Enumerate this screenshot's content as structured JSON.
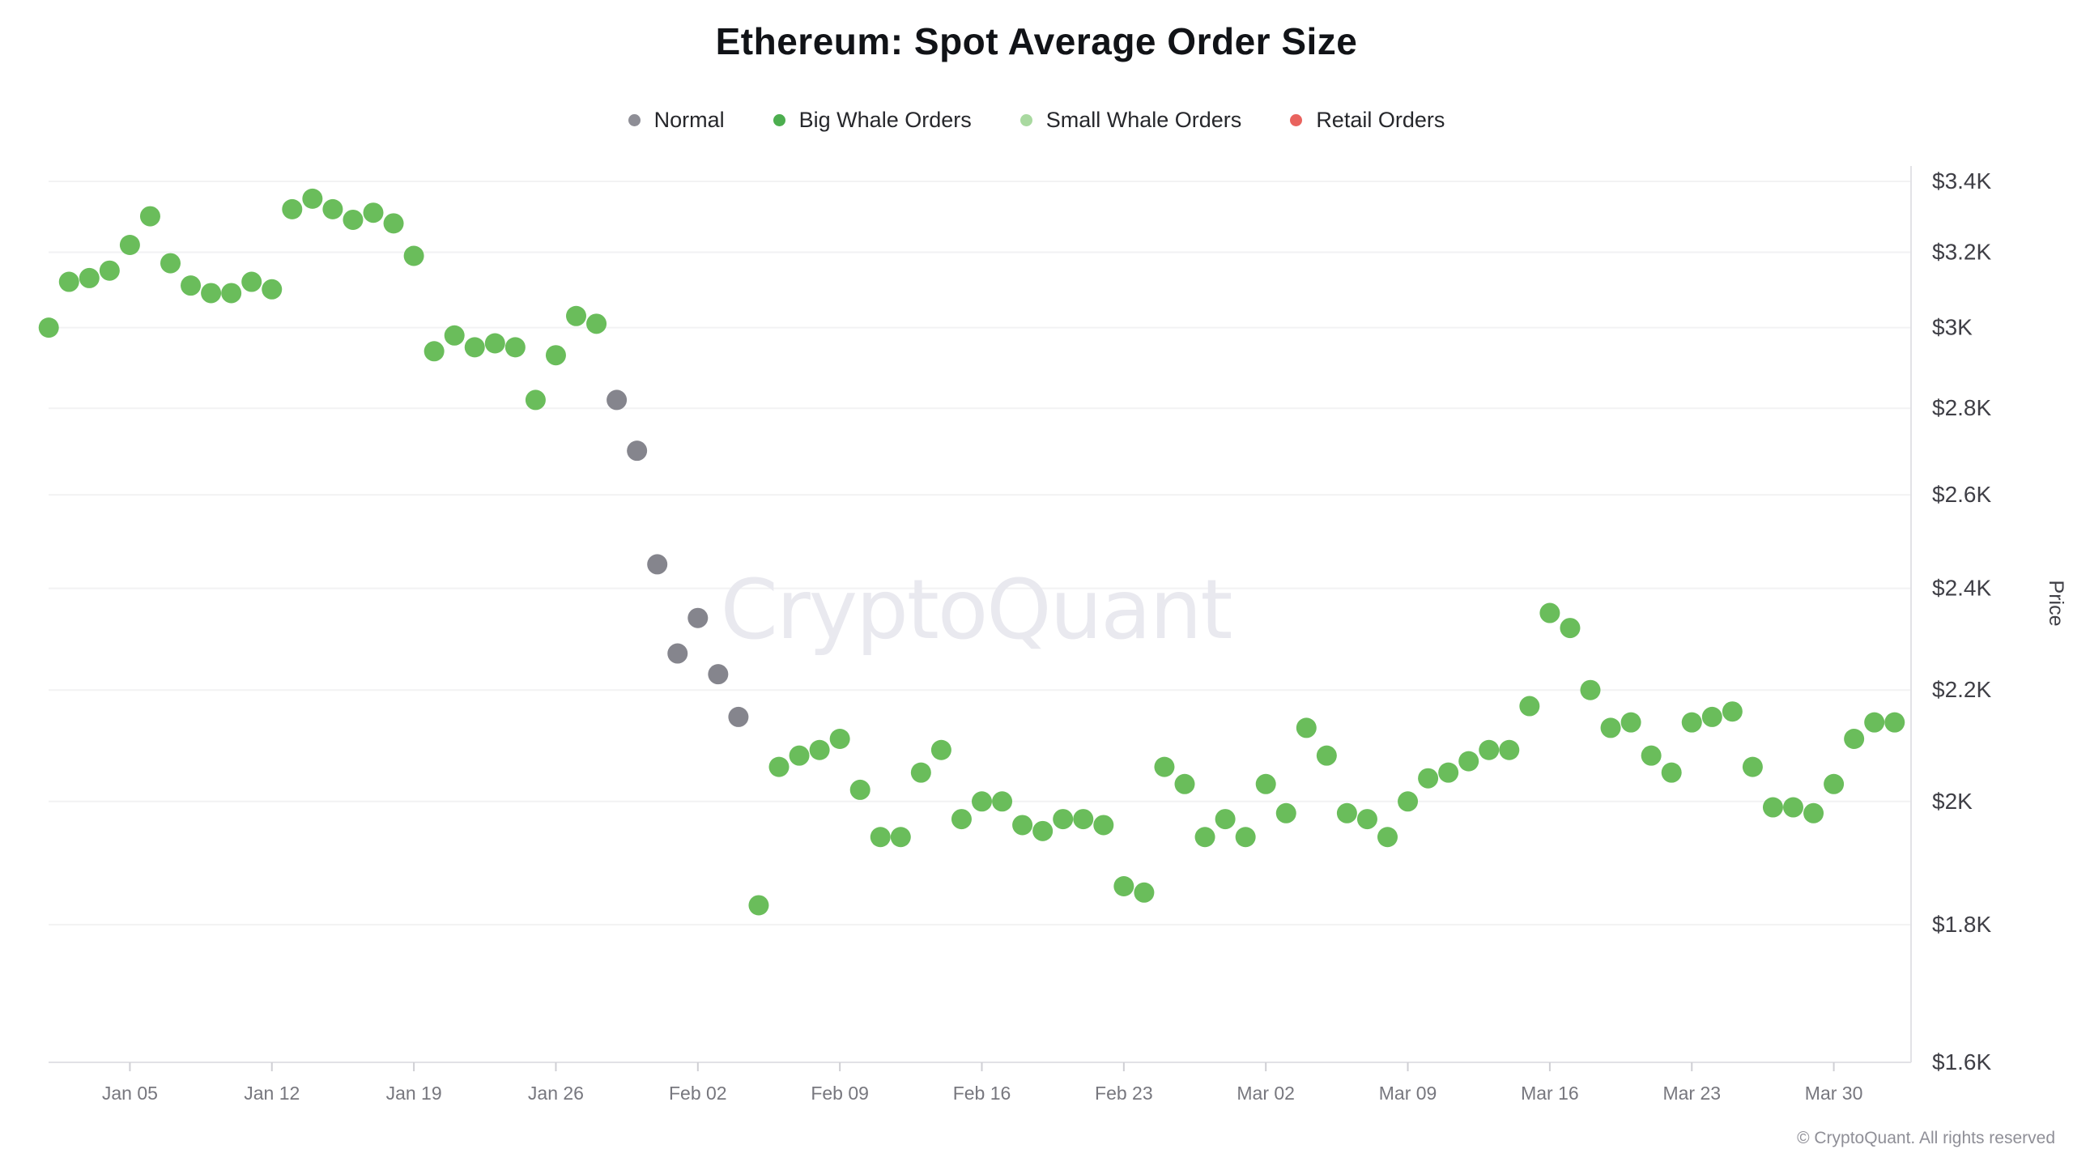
{
  "header": {
    "title": "Ethereum: Spot Average Order Size"
  },
  "legend": [
    {
      "key": "normal",
      "label": "Normal",
      "color": "#8e8e96"
    },
    {
      "key": "big_whale",
      "label": "Big Whale Orders",
      "color": "#4cae4f"
    },
    {
      "key": "small_whale",
      "label": "Small Whale Orders",
      "color": "#a9d9a0"
    },
    {
      "key": "retail",
      "label": "Retail Orders",
      "color": "#e9635e"
    }
  ],
  "watermark": "CryptoQuant",
  "footer": {
    "copyright": "© CryptoQuant. All rights reserved"
  },
  "chart_data": {
    "type": "scatter",
    "title": "Ethereum: Spot Average Order Size",
    "xlabel": "",
    "ylabel": "Price",
    "grid": "horizontal",
    "point_radius": 12.5,
    "y_axis": {
      "scale": "log",
      "unit": "USD",
      "ticks": [
        {
          "label": "$3.4K",
          "value": 3.4
        },
        {
          "label": "$3.2K",
          "value": 3.2
        },
        {
          "label": "$3K",
          "value": 3.0
        },
        {
          "label": "$2.8K",
          "value": 2.8
        },
        {
          "label": "$2.6K",
          "value": 2.6
        },
        {
          "label": "$2.4K",
          "value": 2.4
        },
        {
          "label": "$2.2K",
          "value": 2.2
        },
        {
          "label": "$2K",
          "value": 2.0
        },
        {
          "label": "$1.8K",
          "value": 1.8
        },
        {
          "label": "$1.6K",
          "value": 1.6
        }
      ]
    },
    "x_axis": {
      "range": [
        "Jan 01",
        "Apr 02"
      ],
      "ticks": [
        {
          "label": "Jan 05",
          "day": 4
        },
        {
          "label": "Jan 12",
          "day": 11
        },
        {
          "label": "Jan 19",
          "day": 18
        },
        {
          "label": "Jan 26",
          "day": 25
        },
        {
          "label": "Feb 02",
          "day": 32
        },
        {
          "label": "Feb 09",
          "day": 39
        },
        {
          "label": "Feb 16",
          "day": 46
        },
        {
          "label": "Feb 23",
          "day": 53
        },
        {
          "label": "Mar 02",
          "day": 60
        },
        {
          "label": "Mar 09",
          "day": 67
        },
        {
          "label": "Mar 16",
          "day": 74
        },
        {
          "label": "Mar 23",
          "day": 81
        },
        {
          "label": "Mar 30",
          "day": 88
        }
      ]
    },
    "series_colors": {
      "normal": "#85858d",
      "big_whale": "#6abd5b",
      "small_whale": "#a9d9a0",
      "retail": "#e9635e"
    },
    "points": [
      {
        "date": "Jan 01",
        "day": 0,
        "price_k": 3.0,
        "series": "big_whale"
      },
      {
        "date": "Jan 02",
        "day": 1,
        "price_k": 3.12,
        "series": "big_whale"
      },
      {
        "date": "Jan 03",
        "day": 2,
        "price_k": 3.13,
        "series": "big_whale"
      },
      {
        "date": "Jan 04",
        "day": 3,
        "price_k": 3.15,
        "series": "big_whale"
      },
      {
        "date": "Jan 05",
        "day": 4,
        "price_k": 3.22,
        "series": "big_whale"
      },
      {
        "date": "Jan 06",
        "day": 5,
        "price_k": 3.3,
        "series": "big_whale"
      },
      {
        "date": "Jan 07",
        "day": 6,
        "price_k": 3.17,
        "series": "big_whale"
      },
      {
        "date": "Jan 08",
        "day": 7,
        "price_k": 3.11,
        "series": "big_whale"
      },
      {
        "date": "Jan 09",
        "day": 8,
        "price_k": 3.09,
        "series": "big_whale"
      },
      {
        "date": "Jan 10",
        "day": 9,
        "price_k": 3.09,
        "series": "big_whale"
      },
      {
        "date": "Jan 11",
        "day": 10,
        "price_k": 3.12,
        "series": "big_whale"
      },
      {
        "date": "Jan 12",
        "day": 11,
        "price_k": 3.1,
        "series": "big_whale"
      },
      {
        "date": "Jan 13",
        "day": 12,
        "price_k": 3.32,
        "series": "big_whale"
      },
      {
        "date": "Jan 14",
        "day": 13,
        "price_k": 3.35,
        "series": "big_whale"
      },
      {
        "date": "Jan 15",
        "day": 14,
        "price_k": 3.32,
        "series": "big_whale"
      },
      {
        "date": "Jan 16",
        "day": 15,
        "price_k": 3.29,
        "series": "big_whale"
      },
      {
        "date": "Jan 17",
        "day": 16,
        "price_k": 3.31,
        "series": "big_whale"
      },
      {
        "date": "Jan 18",
        "day": 17,
        "price_k": 3.28,
        "series": "big_whale"
      },
      {
        "date": "Jan 19",
        "day": 18,
        "price_k": 3.19,
        "series": "big_whale"
      },
      {
        "date": "Jan 20",
        "day": 19,
        "price_k": 2.94,
        "series": "big_whale"
      },
      {
        "date": "Jan 21",
        "day": 20,
        "price_k": 2.98,
        "series": "big_whale"
      },
      {
        "date": "Jan 22",
        "day": 21,
        "price_k": 2.95,
        "series": "big_whale"
      },
      {
        "date": "Jan 23",
        "day": 22,
        "price_k": 2.96,
        "series": "big_whale"
      },
      {
        "date": "Jan 24",
        "day": 23,
        "price_k": 2.95,
        "series": "big_whale"
      },
      {
        "date": "Jan 25",
        "day": 24,
        "price_k": 2.82,
        "series": "big_whale"
      },
      {
        "date": "Jan 26",
        "day": 25,
        "price_k": 2.93,
        "series": "big_whale"
      },
      {
        "date": "Jan 27",
        "day": 26,
        "price_k": 3.03,
        "series": "big_whale"
      },
      {
        "date": "Jan 28",
        "day": 27,
        "price_k": 3.01,
        "series": "big_whale"
      },
      {
        "date": "Jan 29",
        "day": 28,
        "price_k": 2.82,
        "series": "normal"
      },
      {
        "date": "Jan 30",
        "day": 29,
        "price_k": 2.7,
        "series": "normal"
      },
      {
        "date": "Jan 31",
        "day": 30,
        "price_k": 2.45,
        "series": "normal"
      },
      {
        "date": "Feb 01",
        "day": 31,
        "price_k": 2.27,
        "series": "normal"
      },
      {
        "date": "Feb 02",
        "day": 32,
        "price_k": 2.34,
        "series": "normal"
      },
      {
        "date": "Feb 03",
        "day": 33,
        "price_k": 2.23,
        "series": "normal"
      },
      {
        "date": "Feb 04",
        "day": 34,
        "price_k": 2.15,
        "series": "normal"
      },
      {
        "date": "Feb 05",
        "day": 35,
        "price_k": 1.83,
        "series": "big_whale"
      },
      {
        "date": "Feb 06",
        "day": 36,
        "price_k": 2.06,
        "series": "big_whale"
      },
      {
        "date": "Feb 07",
        "day": 37,
        "price_k": 2.08,
        "series": "big_whale"
      },
      {
        "date": "Feb 08",
        "day": 38,
        "price_k": 2.09,
        "series": "big_whale"
      },
      {
        "date": "Feb 09",
        "day": 39,
        "price_k": 2.11,
        "series": "big_whale"
      },
      {
        "date": "Feb 10",
        "day": 40,
        "price_k": 2.02,
        "series": "big_whale"
      },
      {
        "date": "Feb 11",
        "day": 41,
        "price_k": 1.94,
        "series": "big_whale"
      },
      {
        "date": "Feb 12",
        "day": 42,
        "price_k": 1.94,
        "series": "big_whale"
      },
      {
        "date": "Feb 13",
        "day": 43,
        "price_k": 2.05,
        "series": "big_whale"
      },
      {
        "date": "Feb 14",
        "day": 44,
        "price_k": 2.09,
        "series": "big_whale"
      },
      {
        "date": "Feb 15",
        "day": 45,
        "price_k": 1.97,
        "series": "big_whale"
      },
      {
        "date": "Feb 16",
        "day": 46,
        "price_k": 2.0,
        "series": "big_whale"
      },
      {
        "date": "Feb 17",
        "day": 47,
        "price_k": 2.0,
        "series": "big_whale"
      },
      {
        "date": "Feb 18",
        "day": 48,
        "price_k": 1.96,
        "series": "big_whale"
      },
      {
        "date": "Feb 19",
        "day": 49,
        "price_k": 1.95,
        "series": "big_whale"
      },
      {
        "date": "Feb 20",
        "day": 50,
        "price_k": 1.97,
        "series": "big_whale"
      },
      {
        "date": "Feb 21",
        "day": 51,
        "price_k": 1.97,
        "series": "big_whale"
      },
      {
        "date": "Feb 22",
        "day": 52,
        "price_k": 1.96,
        "series": "big_whale"
      },
      {
        "date": "Feb 23",
        "day": 53,
        "price_k": 1.86,
        "series": "big_whale"
      },
      {
        "date": "Feb 24",
        "day": 54,
        "price_k": 1.85,
        "series": "big_whale"
      },
      {
        "date": "Feb 25",
        "day": 55,
        "price_k": 2.06,
        "series": "big_whale"
      },
      {
        "date": "Feb 26",
        "day": 56,
        "price_k": 2.03,
        "series": "big_whale"
      },
      {
        "date": "Feb 27",
        "day": 57,
        "price_k": 1.94,
        "series": "big_whale"
      },
      {
        "date": "Feb 28",
        "day": 58,
        "price_k": 1.97,
        "series": "big_whale"
      },
      {
        "date": "Mar 01",
        "day": 59,
        "price_k": 1.94,
        "series": "big_whale"
      },
      {
        "date": "Mar 02",
        "day": 60,
        "price_k": 2.03,
        "series": "big_whale"
      },
      {
        "date": "Mar 03",
        "day": 61,
        "price_k": 1.98,
        "series": "big_whale"
      },
      {
        "date": "Mar 04",
        "day": 62,
        "price_k": 2.13,
        "series": "big_whale"
      },
      {
        "date": "Mar 05",
        "day": 63,
        "price_k": 2.08,
        "series": "big_whale"
      },
      {
        "date": "Mar 06",
        "day": 64,
        "price_k": 1.98,
        "series": "big_whale"
      },
      {
        "date": "Mar 07",
        "day": 65,
        "price_k": 1.97,
        "series": "big_whale"
      },
      {
        "date": "Mar 08",
        "day": 66,
        "price_k": 1.94,
        "series": "big_whale"
      },
      {
        "date": "Mar 09",
        "day": 67,
        "price_k": 2.0,
        "series": "big_whale"
      },
      {
        "date": "Mar 10",
        "day": 68,
        "price_k": 2.04,
        "series": "big_whale"
      },
      {
        "date": "Mar 11",
        "day": 69,
        "price_k": 2.05,
        "series": "big_whale"
      },
      {
        "date": "Mar 12",
        "day": 70,
        "price_k": 2.07,
        "series": "big_whale"
      },
      {
        "date": "Mar 13",
        "day": 71,
        "price_k": 2.09,
        "series": "big_whale"
      },
      {
        "date": "Mar 14",
        "day": 72,
        "price_k": 2.09,
        "series": "big_whale"
      },
      {
        "date": "Mar 15",
        "day": 73,
        "price_k": 2.17,
        "series": "big_whale"
      },
      {
        "date": "Mar 16",
        "day": 74,
        "price_k": 2.35,
        "series": "big_whale"
      },
      {
        "date": "Mar 17",
        "day": 75,
        "price_k": 2.32,
        "series": "big_whale"
      },
      {
        "date": "Mar 18",
        "day": 76,
        "price_k": 2.2,
        "series": "big_whale"
      },
      {
        "date": "Mar 19",
        "day": 77,
        "price_k": 2.13,
        "series": "big_whale"
      },
      {
        "date": "Mar 20",
        "day": 78,
        "price_k": 2.14,
        "series": "big_whale"
      },
      {
        "date": "Mar 21",
        "day": 79,
        "price_k": 2.08,
        "series": "big_whale"
      },
      {
        "date": "Mar 22",
        "day": 80,
        "price_k": 2.05,
        "series": "big_whale"
      },
      {
        "date": "Mar 23",
        "day": 81,
        "price_k": 2.14,
        "series": "big_whale"
      },
      {
        "date": "Mar 24",
        "day": 82,
        "price_k": 2.15,
        "series": "big_whale"
      },
      {
        "date": "Mar 25",
        "day": 83,
        "price_k": 2.16,
        "series": "big_whale"
      },
      {
        "date": "Mar 26",
        "day": 84,
        "price_k": 2.06,
        "series": "big_whale"
      },
      {
        "date": "Mar 27",
        "day": 85,
        "price_k": 1.99,
        "series": "big_whale"
      },
      {
        "date": "Mar 28",
        "day": 86,
        "price_k": 1.99,
        "series": "big_whale"
      },
      {
        "date": "Mar 29",
        "day": 87,
        "price_k": 1.98,
        "series": "big_whale"
      },
      {
        "date": "Mar 30",
        "day": 88,
        "price_k": 2.03,
        "series": "big_whale"
      },
      {
        "date": "Mar 31",
        "day": 89,
        "price_k": 2.11,
        "series": "big_whale"
      },
      {
        "date": "Apr 01",
        "day": 90,
        "price_k": 2.14,
        "series": "big_whale"
      },
      {
        "date": "Apr 02",
        "day": 91,
        "price_k": 2.14,
        "series": "big_whale"
      }
    ]
  }
}
